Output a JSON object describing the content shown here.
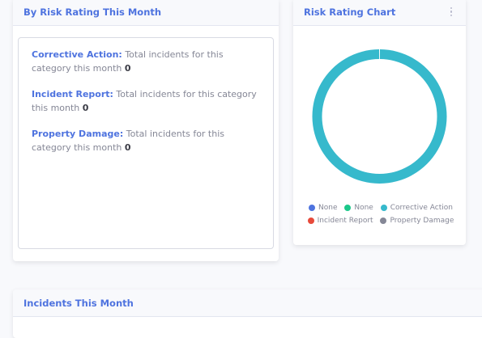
{
  "risk_month": {
    "title": "By Risk Rating This Month",
    "items": [
      {
        "label": "Corrective Action:",
        "text": "Total incidents for this category this month",
        "value": "0"
      },
      {
        "label": "Incident Report:",
        "text": "Total incidents for this category this month",
        "value": "0"
      },
      {
        "label": "Property Damage:",
        "text": "Total incidents for this category this month",
        "value": "0"
      }
    ]
  },
  "risk_chart": {
    "title": "Risk Rating Chart",
    "menu_icon": "kebab-menu-icon",
    "legend": [
      {
        "label": "None",
        "color": "#4e73df"
      },
      {
        "label": "None",
        "color": "#1cc88a"
      },
      {
        "label": "Corrective Action",
        "color": "#36b9cc"
      },
      {
        "label": "Incident Report",
        "color": "#e74a3b"
      },
      {
        "label": "Property Damage",
        "color": "#858796"
      }
    ]
  },
  "chart_data": {
    "type": "pie",
    "categories": [
      "None",
      "None",
      "Corrective Action",
      "Incident Report",
      "Property Damage"
    ],
    "values": [
      0,
      0,
      1,
      0,
      0
    ],
    "colors": [
      "#4e73df",
      "#1cc88a",
      "#36b9cc",
      "#e74a3b",
      "#858796"
    ],
    "legend_position": "bottom"
  },
  "incidents": {
    "title": "Incidents This Month"
  }
}
